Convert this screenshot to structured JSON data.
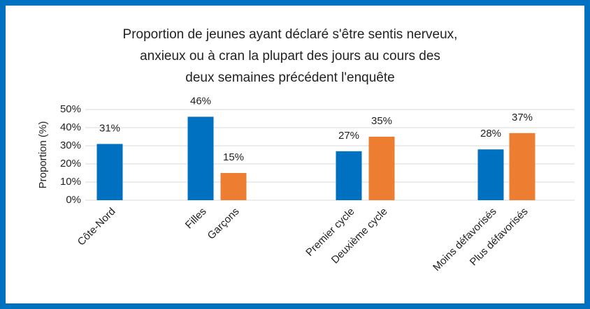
{
  "chart_data": {
    "type": "bar",
    "title": [
      "Proportion de jeunes ayant déclaré s'être sentis nerveux,",
      "anxieux ou à cran la plupart des jours au cours des",
      "deux semaines précédent l'enquête"
    ],
    "y_label": "Proportion (%)",
    "categories": [
      "Côte-Nord",
      "Filles",
      "Garçons",
      "Premier cycle",
      "Deuxième cycle",
      "Moins défavorisés",
      "Plus défavorisés"
    ],
    "series": [
      {
        "color": "#0070c0",
        "values": [
          31,
          46,
          null,
          27,
          null,
          28,
          null
        ],
        "value_labels": [
          "31%",
          "46%",
          null,
          "27%",
          null,
          "28%",
          null
        ]
      },
      {
        "color": "#ed7d31",
        "values": [
          null,
          null,
          15,
          null,
          35,
          null,
          37
        ],
        "value_labels": [
          null,
          null,
          "15%",
          null,
          "35%",
          null,
          "37%"
        ]
      }
    ],
    "ylim": [
      0,
      50
    ],
    "yticks": [
      {
        "value": 0,
        "label": "0%"
      },
      {
        "value": 10,
        "label": "10%"
      },
      {
        "value": 20,
        "label": "20%"
      },
      {
        "value": 30,
        "label": "30%"
      },
      {
        "value": 40,
        "label": "40%"
      },
      {
        "value": 50,
        "label": "50%"
      }
    ],
    "grid": true
  }
}
